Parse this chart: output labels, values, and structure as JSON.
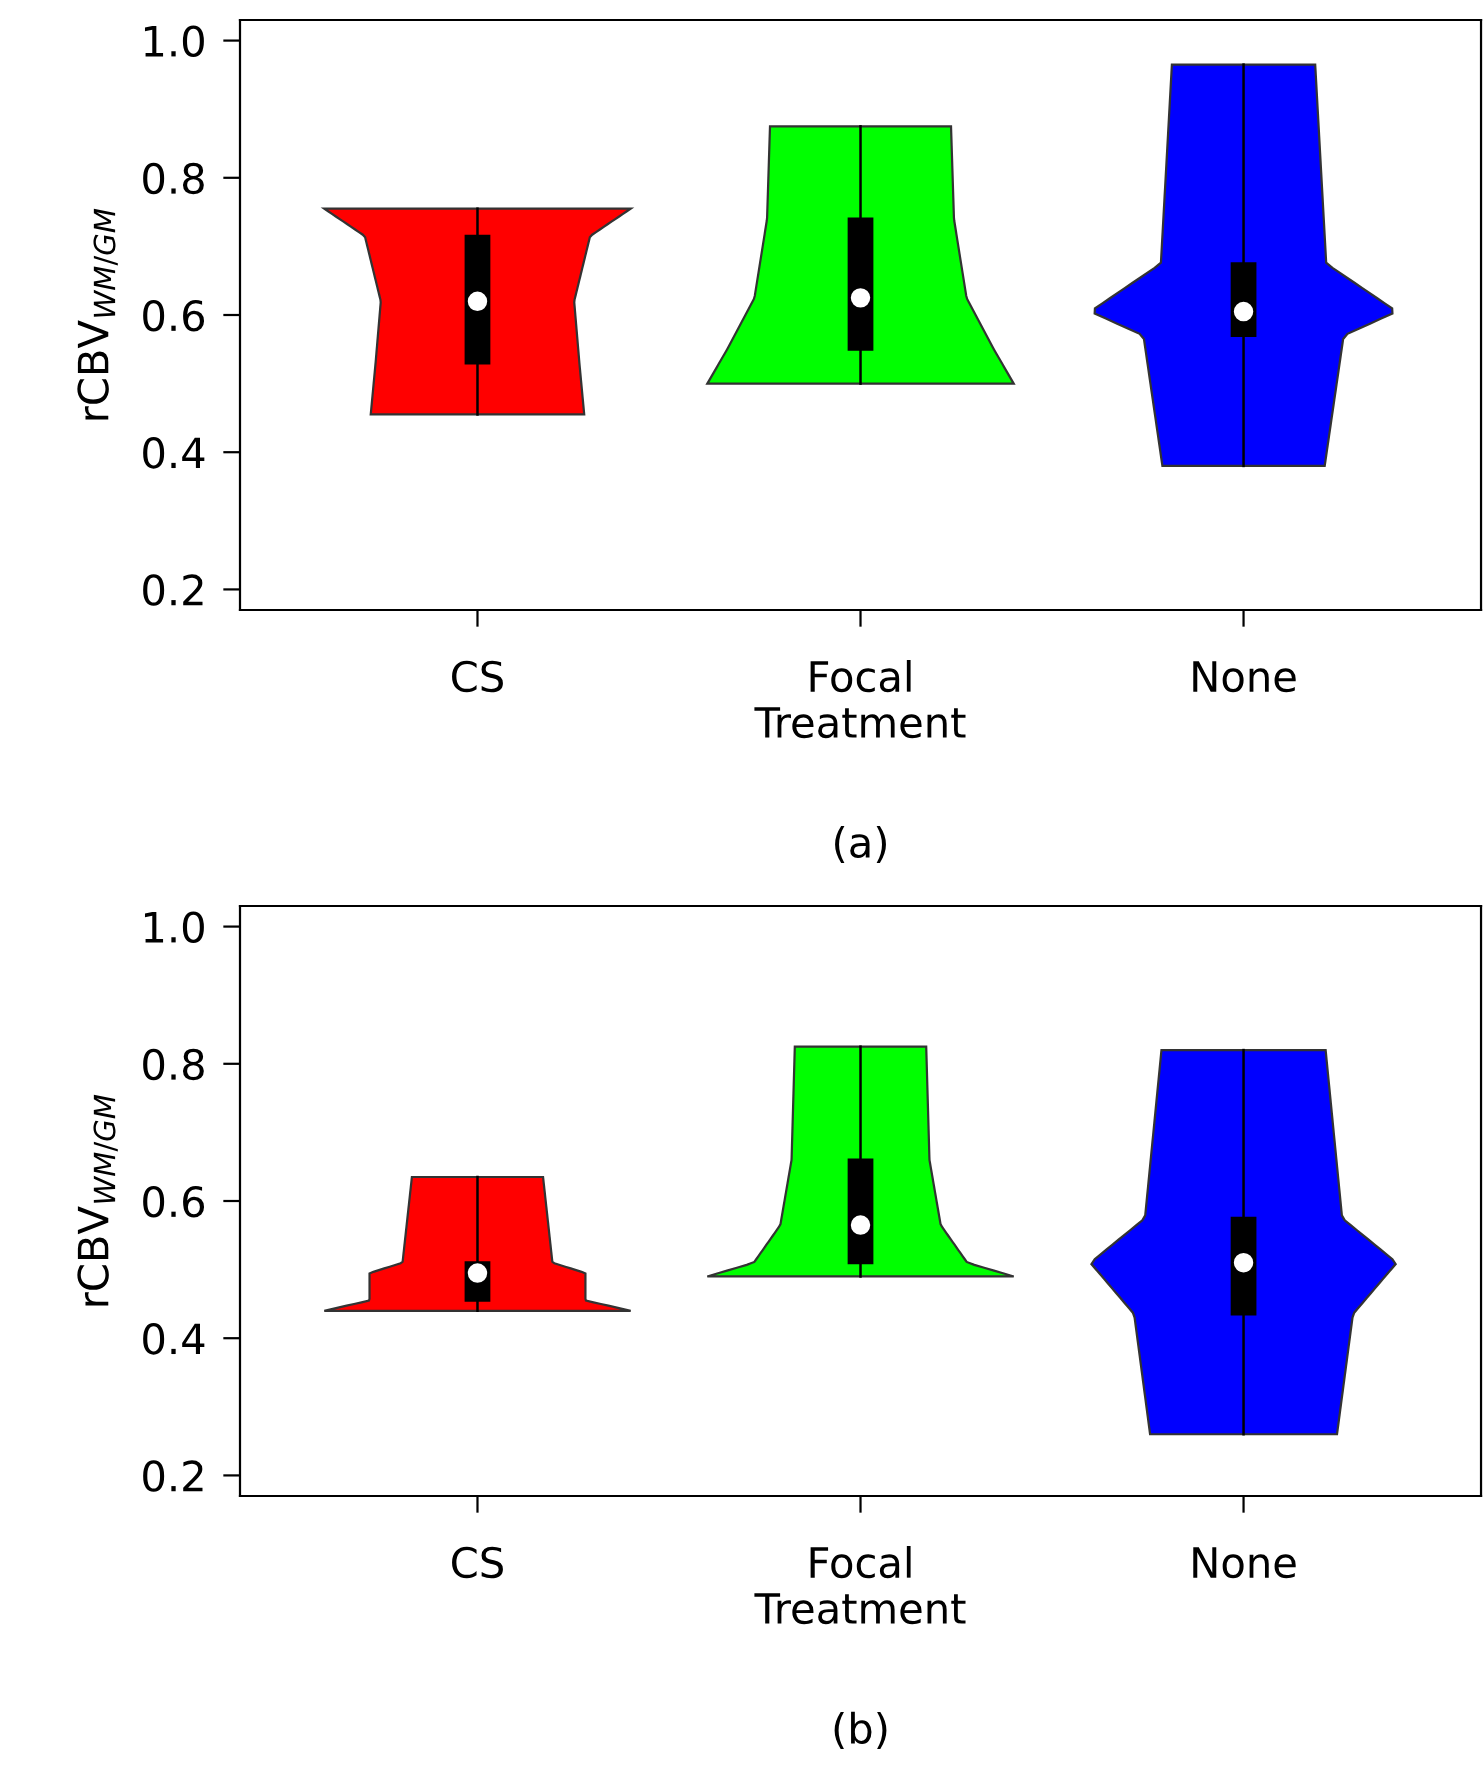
{
  "chart_data": [
    {
      "type": "box",
      "categories": [
        "CS",
        "Focal",
        "None"
      ],
      "colors": [
        "#ff0000",
        "#00ff00",
        "#0000ff"
      ],
      "xlabel": "Treatment",
      "ylabel": "rCBV$_{WM/GM}$",
      "annotations": [
        "(a)"
      ],
      "ylim": [
        0.17,
        1.03
      ],
      "yticks": [
        0.2,
        0.4,
        0.6,
        0.8,
        {
          "value": 1.0,
          "label": "1.0"
        }
      ],
      "grid": false,
      "series": [
        {
          "color": "#000000",
          "boxes": [
            {
              "low": 0.455,
              "q1": 0.53,
              "median": 0.62,
              "q3": 0.715,
              "high": 0.755
            },
            {
              "low": 0.5,
              "q1": 0.55,
              "median": 0.625,
              "q3": 0.74,
              "high": 0.875
            },
            {
              "low": 0.38,
              "q1": 0.57,
              "median": 0.605,
              "q3": 0.675,
              "high": 0.965
            }
          ]
        }
      ]
    },
    {
      "type": "box",
      "categories": [
        "CS",
        "Focal",
        "None"
      ],
      "colors": [
        "#ff0000",
        "#00ff00",
        "#0000ff"
      ],
      "xlabel": "Treatment",
      "ylabel": "rCBV$_{WM/GM}$",
      "annotations": [
        "(b)"
      ],
      "ylim": [
        0.17,
        1.03
      ],
      "yticks": [
        0.2,
        0.4,
        0.6,
        0.8,
        {
          "value": 1.0,
          "label": "1.0"
        }
      ],
      "grid": false,
      "series": [
        {
          "color": "#000000",
          "boxes": [
            {
              "low": 0.44,
              "q1": 0.455,
              "median": 0.495,
              "q3": 0.51,
              "high": 0.635
            },
            {
              "low": 0.49,
              "q1": 0.51,
              "median": 0.565,
              "q3": 0.66,
              "high": 0.825
            },
            {
              "low": 0.26,
              "q1": 0.435,
              "median": 0.51,
              "q3": 0.575,
              "high": 0.82
            }
          ]
        }
      ]
    }
  ]
}
